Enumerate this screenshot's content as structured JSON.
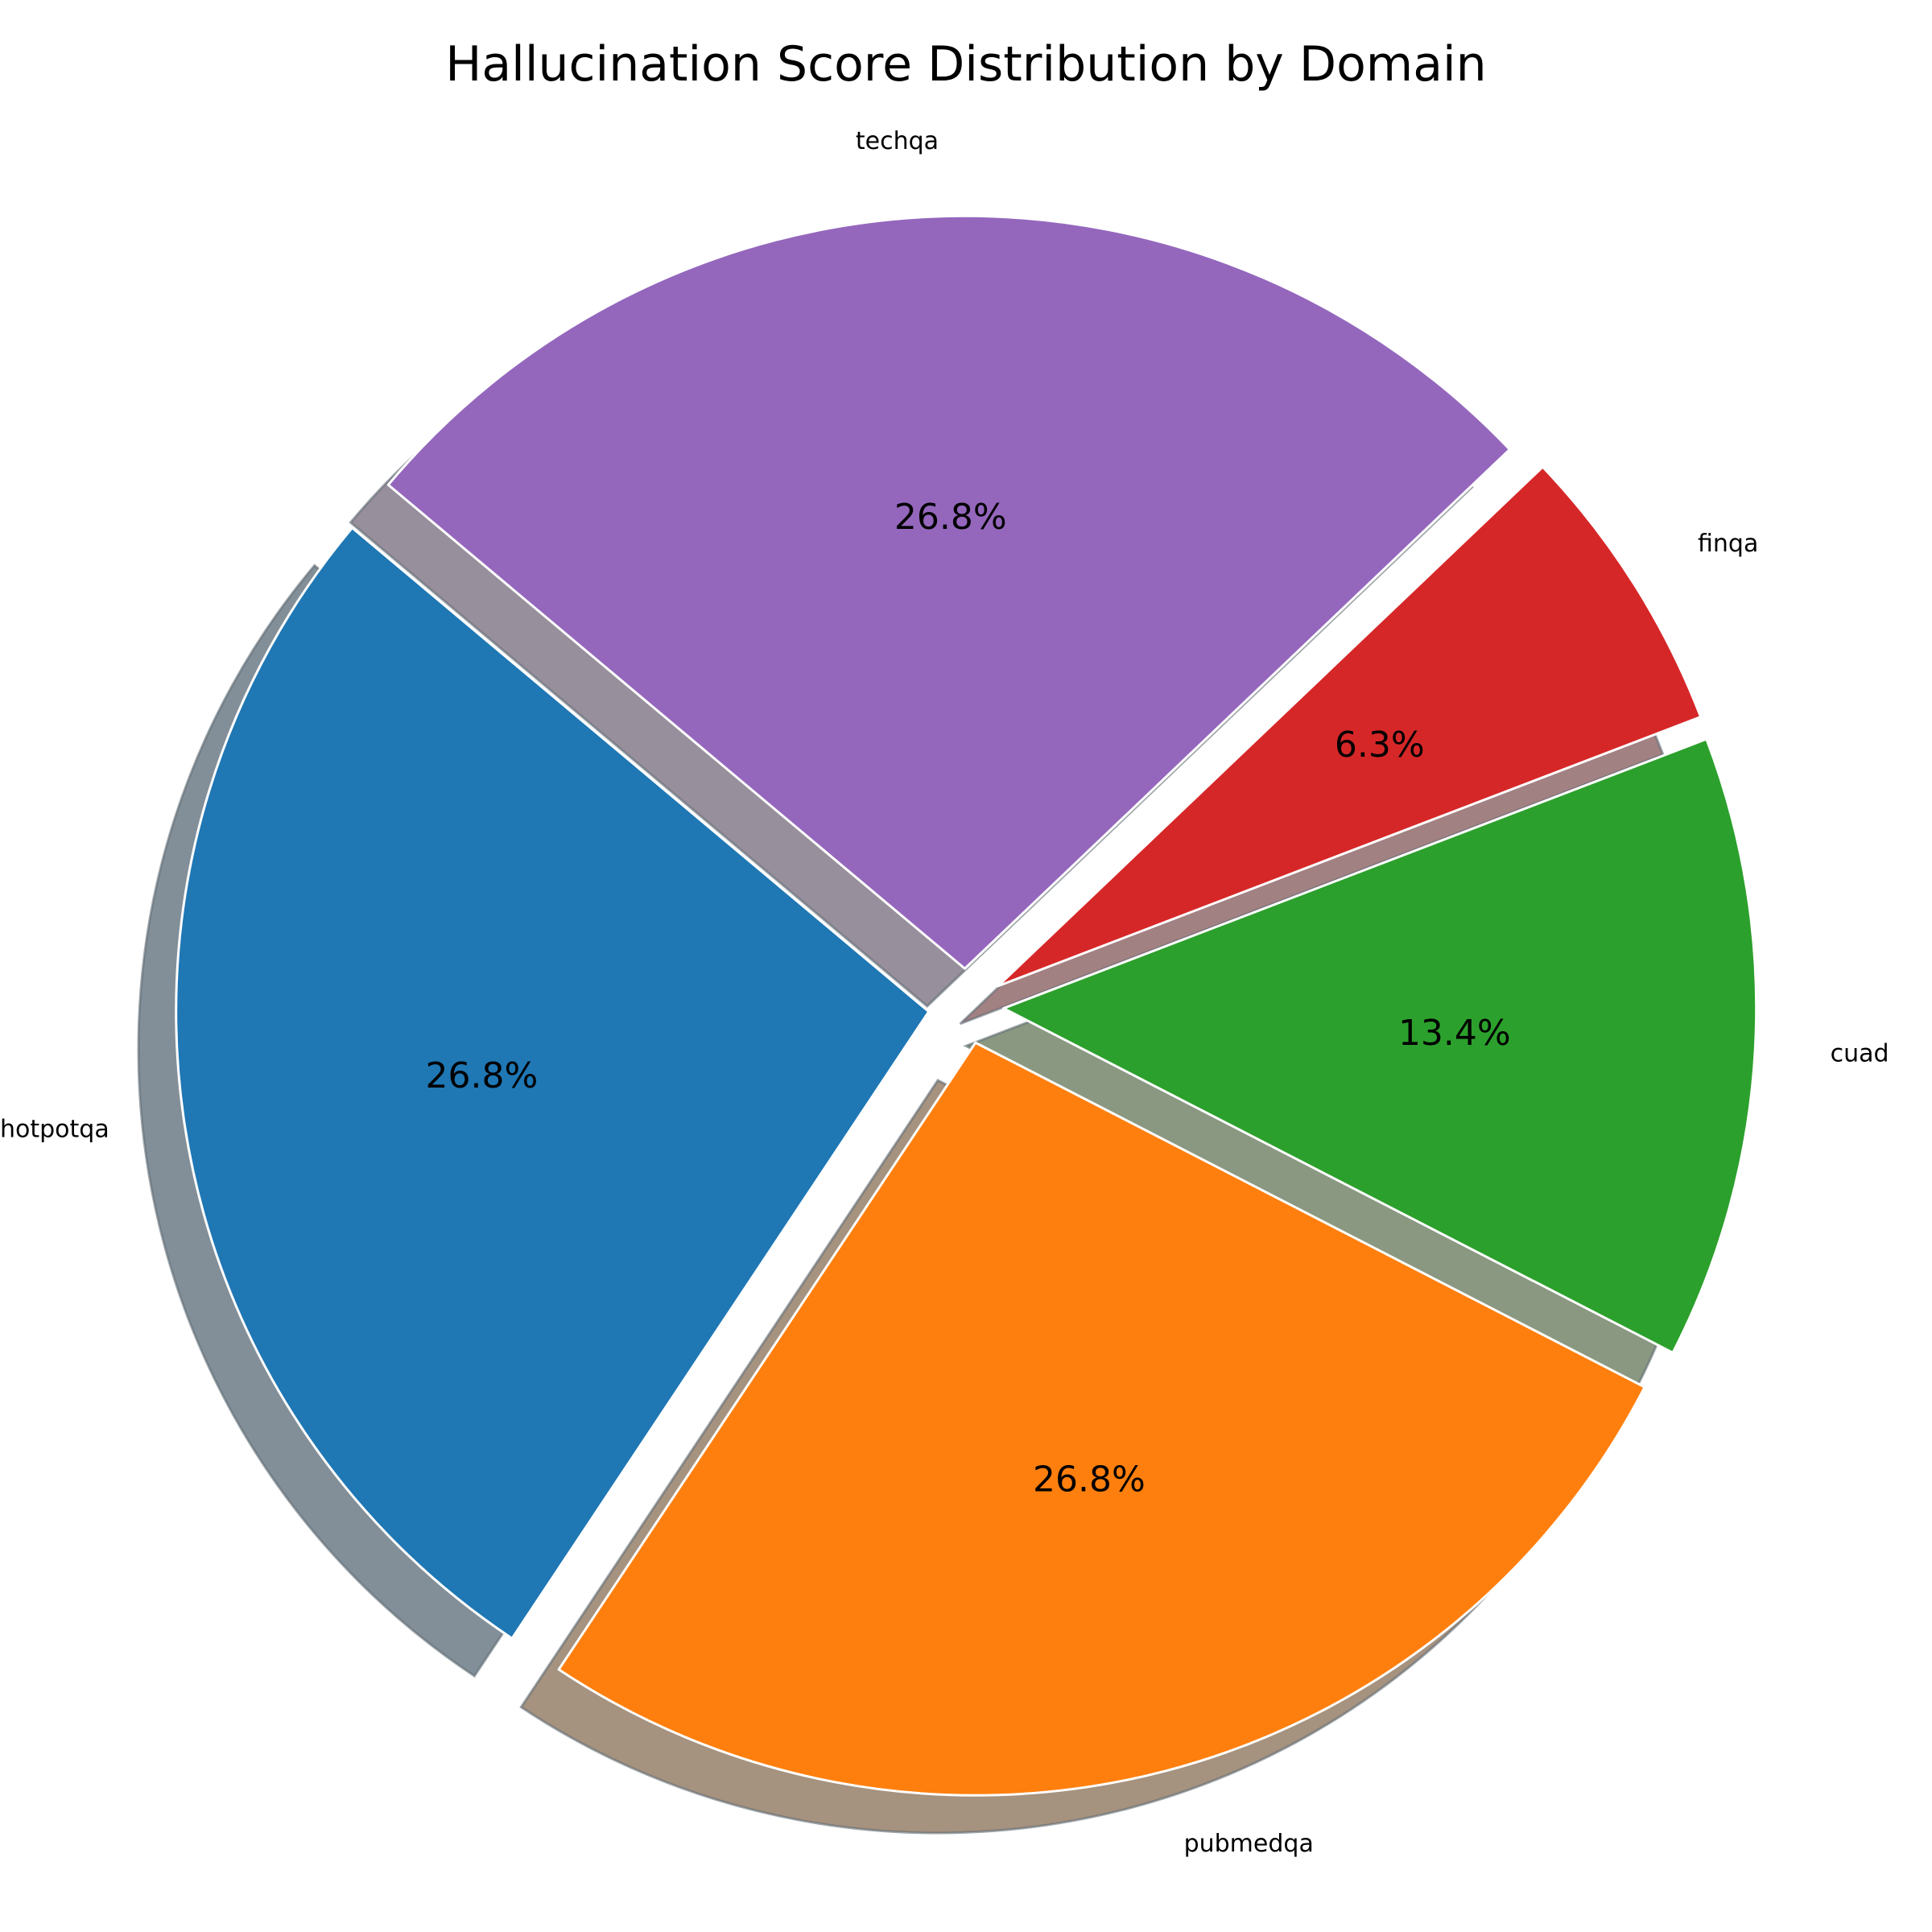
{
  "chart_data": {
    "type": "pie",
    "title": "Hallucination Score Distribution by Domain",
    "categories": [
      "hotpotqa",
      "pubmedqa",
      "cuad",
      "finqa",
      "techqa"
    ],
    "values": [
      26.8,
      26.8,
      13.4,
      6.3,
      26.8
    ],
    "value_labels": [
      "26.8%",
      "26.8%",
      "13.4%",
      "6.3%",
      "26.8%"
    ],
    "colors": [
      "#1f77b4",
      "#ff7f0e",
      "#2ca02c",
      "#d62728",
      "#9467bd"
    ],
    "start_angle_deg": 140,
    "direction": "counterclockwise",
    "exploded": true,
    "shadow": true,
    "legend": "none"
  }
}
